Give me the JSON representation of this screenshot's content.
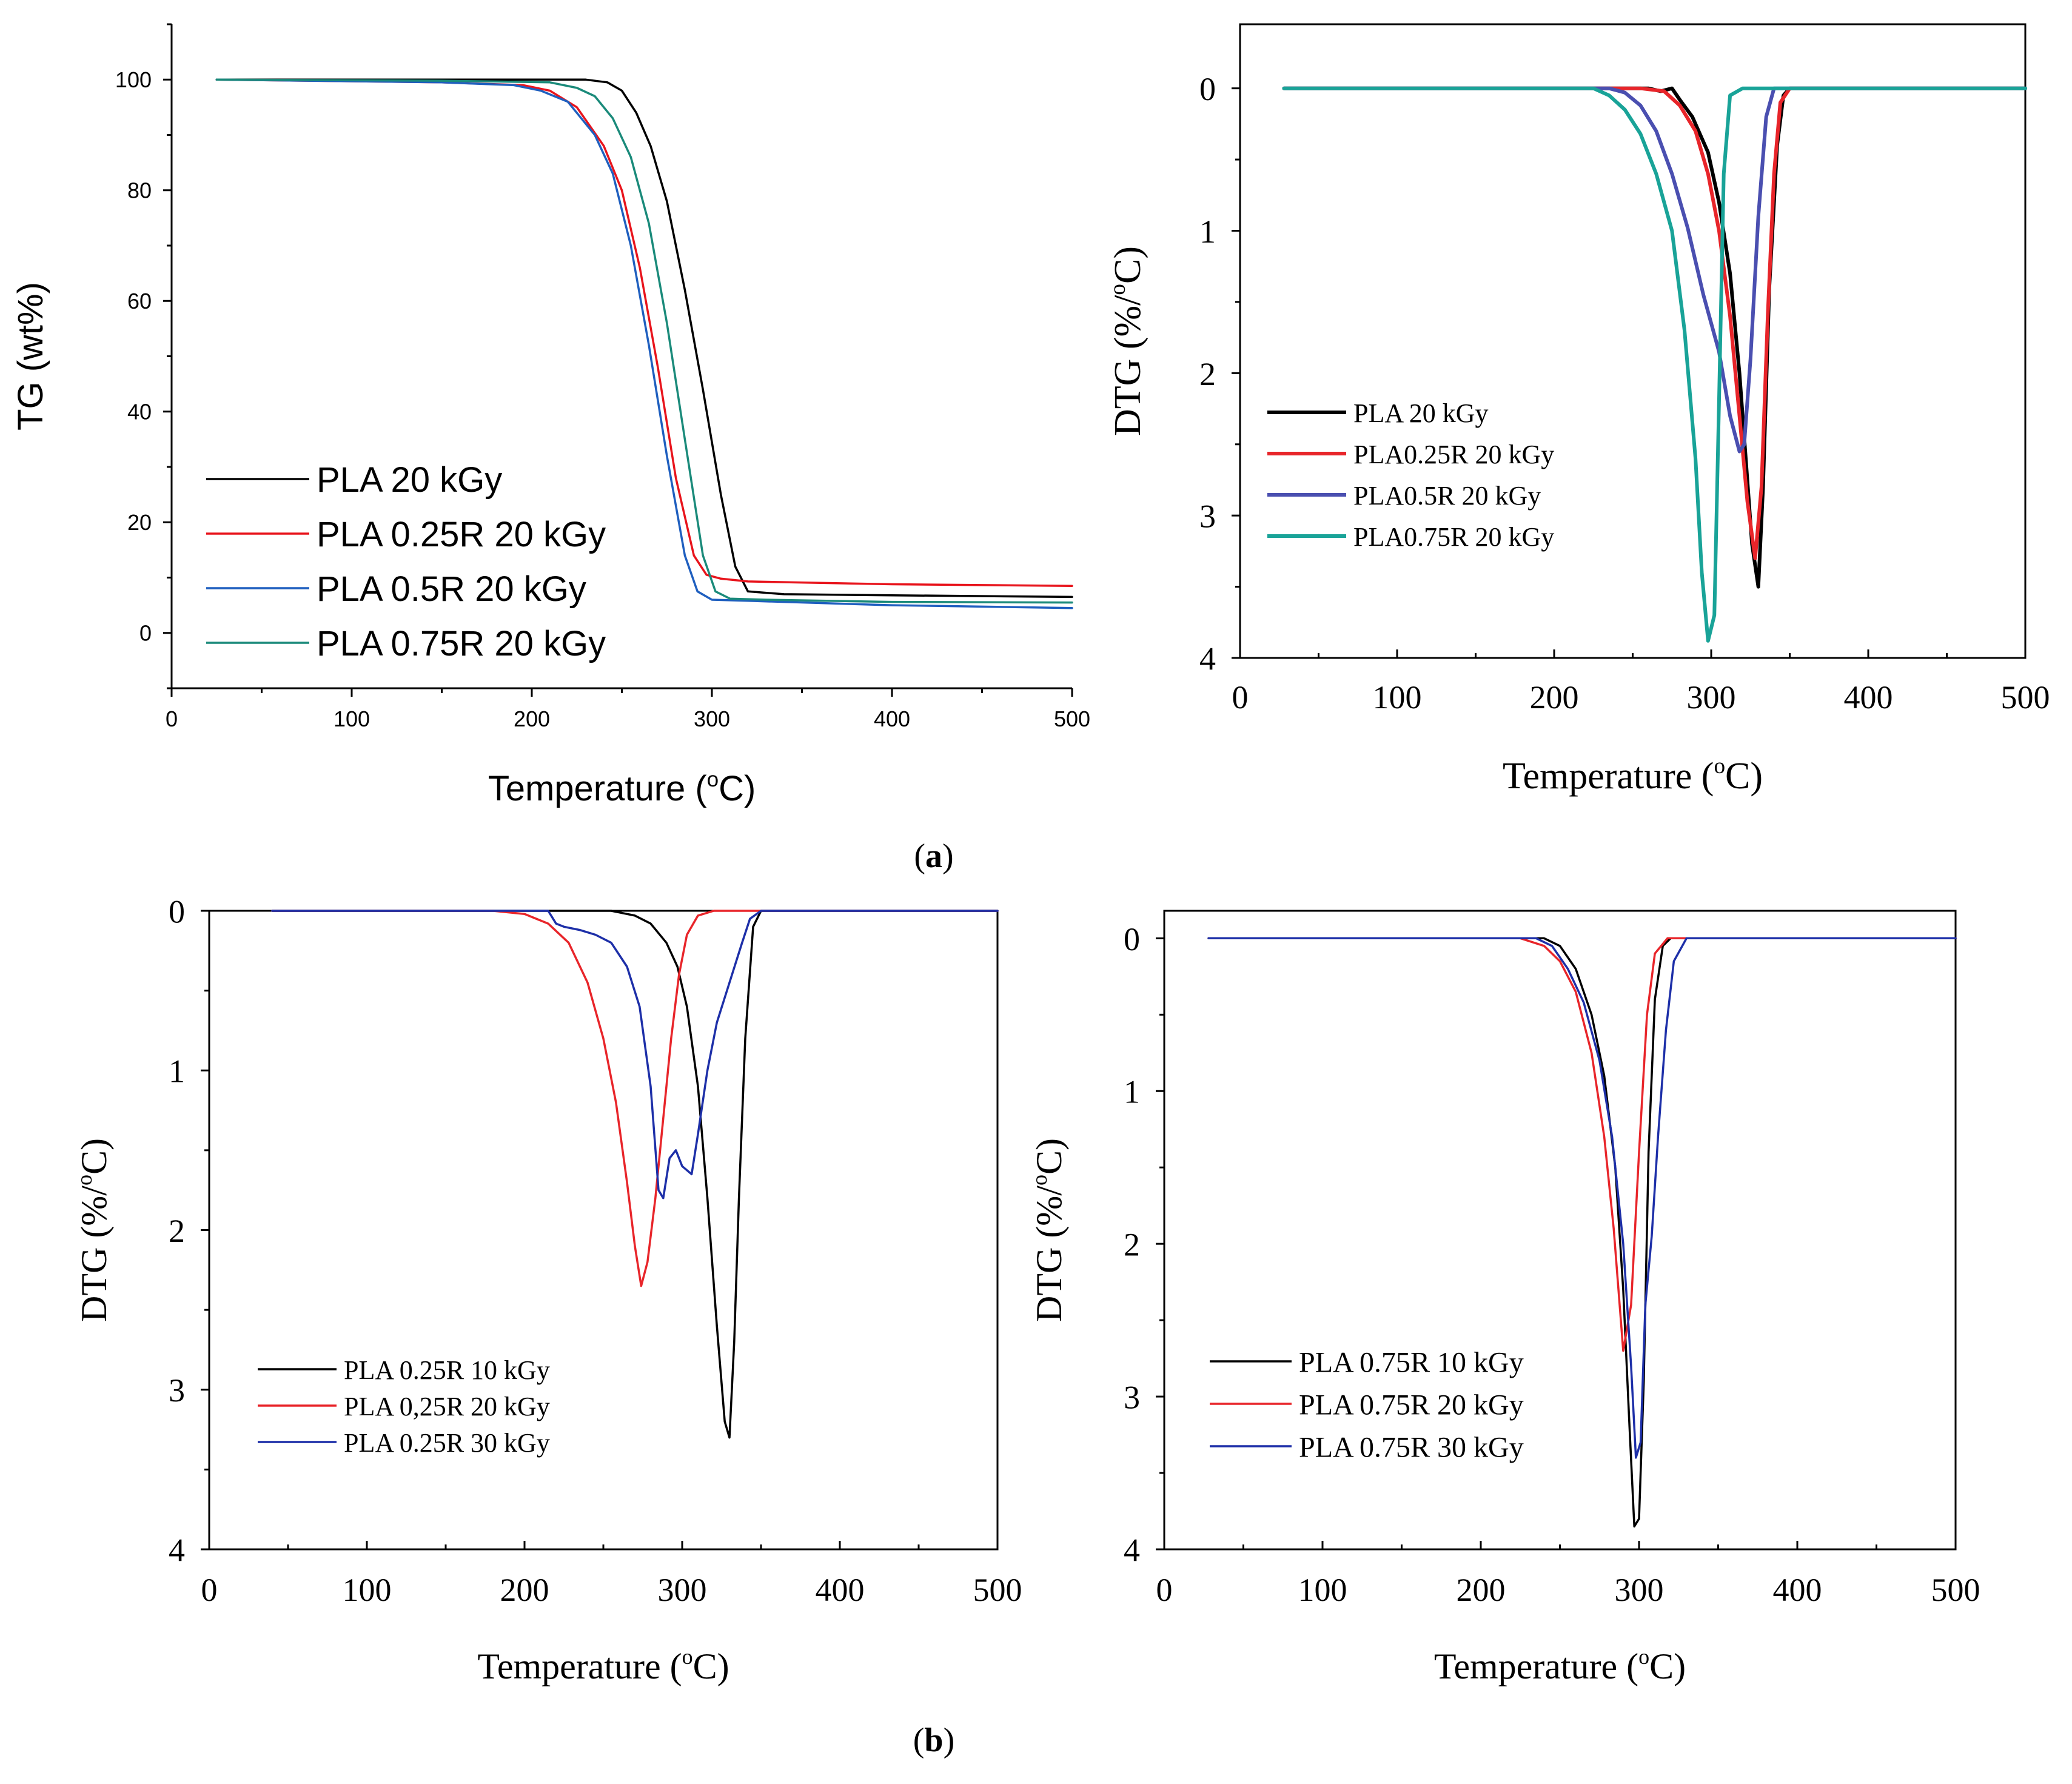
{
  "panel_labels": {
    "a": "a",
    "b": "b"
  },
  "colors": {
    "black": "#000000",
    "red": "#e8141c",
    "blue_tg": "#1f5fbf",
    "teal_tg": "#1a8a7a",
    "red_dtg": "#e8252a",
    "blue_dtg": "#4a4fb0",
    "teal_dtg": "#19a398",
    "navy": "#1d2fa8"
  },
  "chart_data": [
    {
      "id": "tg",
      "type": "line",
      "title": "",
      "xlabel": "Temperature",
      "xunit_sup": "o",
      "xunit": "C",
      "ylabel": "TG (wt%)",
      "xlim": [
        0,
        500
      ],
      "ylim": [
        -10,
        110
      ],
      "xticks": [
        "0",
        "100",
        "200",
        "300",
        "400",
        "500"
      ],
      "yticks": [
        "0",
        "20",
        "40",
        "60",
        "80",
        "100"
      ],
      "legend_position": "bottom-left",
      "series": [
        {
          "name": "PLA 20 kGy",
          "color": "#000000",
          "x": [
            25,
            150,
            230,
            242,
            250,
            258,
            266,
            275,
            285,
            295,
            305,
            313,
            320,
            340,
            400,
            500
          ],
          "y": [
            100,
            100,
            100,
            99.5,
            98,
            94,
            88,
            78,
            62,
            44,
            25,
            12,
            7.5,
            7.0,
            6.8,
            6.5
          ]
        },
        {
          "name": "PLA 0.25R 20 kGy",
          "color": "#e8141c",
          "x": [
            25,
            150,
            195,
            210,
            225,
            240,
            250,
            260,
            270,
            280,
            290,
            297,
            305,
            320,
            400,
            500
          ],
          "y": [
            100,
            99.5,
            99,
            98,
            95,
            88,
            80,
            66,
            48,
            28,
            14,
            10.5,
            9.8,
            9.3,
            8.8,
            8.5
          ]
        },
        {
          "name": "PLA 0.5R 20 kGy",
          "color": "#1f5fbf",
          "x": [
            25,
            150,
            190,
            205,
            220,
            235,
            245,
            255,
            265,
            275,
            285,
            292,
            300,
            320,
            400,
            500
          ],
          "y": [
            100,
            99.5,
            99,
            98,
            96,
            90,
            83,
            70,
            52,
            32,
            14,
            7.5,
            6.0,
            5.8,
            5.0,
            4.5
          ]
        },
        {
          "name": "PLA 0.75R 20 kGy",
          "color": "#1a8a7a",
          "x": [
            25,
            150,
            210,
            225,
            235,
            245,
            255,
            265,
            275,
            285,
            295,
            302,
            310,
            330,
            400,
            500
          ],
          "y": [
            100,
            99.8,
            99.5,
            98.5,
            97,
            93,
            86,
            74,
            56,
            35,
            14,
            7.5,
            6.2,
            6.0,
            5.6,
            5.5
          ]
        }
      ]
    },
    {
      "id": "dtg_a",
      "type": "line",
      "xlabel": "Temperature",
      "xunit_sup": "o",
      "xunit": "C",
      "ylabel": "DTG (%/",
      "yunit_sup": "o",
      "yunit": "C)",
      "xlim": [
        0,
        500
      ],
      "ylim": [
        -0.45,
        4
      ],
      "y_inverted": true,
      "xticks": [
        "0",
        "100",
        "200",
        "300",
        "400",
        "500"
      ],
      "yticks": [
        "0",
        "1",
        "2",
        "3",
        "4"
      ],
      "legend_position": "bottom-left",
      "series": [
        {
          "name": "PLA 20 kGy",
          "color": "#000000",
          "x": [
            28,
            200,
            260,
            268,
            275,
            280,
            288,
            298,
            305,
            312,
            318,
            322,
            326,
            330,
            333,
            337,
            342,
            346,
            350,
            400,
            500
          ],
          "y": [
            0,
            0,
            0,
            0.02,
            0.0,
            0.08,
            0.2,
            0.45,
            0.8,
            1.3,
            2.0,
            2.6,
            3.2,
            3.5,
            2.8,
            1.4,
            0.4,
            0.05,
            0,
            0,
            0
          ]
        },
        {
          "name": "PLA0.25R 20 kGy",
          "color": "#e8252a",
          "x": [
            28,
            200,
            255,
            270,
            280,
            290,
            298,
            305,
            312,
            318,
            323,
            328,
            332,
            336,
            340,
            344,
            350,
            400,
            500
          ],
          "y": [
            0,
            0,
            0,
            0.02,
            0.12,
            0.3,
            0.6,
            1.0,
            1.6,
            2.3,
            2.9,
            3.3,
            2.8,
            1.6,
            0.6,
            0.1,
            0,
            0,
            0
          ]
        },
        {
          "name": "PLA0.5R 20 kGy",
          "color": "#4a4fb0",
          "x": [
            28,
            200,
            235,
            245,
            255,
            265,
            275,
            285,
            295,
            305,
            312,
            318,
            321,
            325,
            330,
            335,
            340,
            400,
            500
          ],
          "y": [
            0,
            0,
            0,
            0.03,
            0.12,
            0.3,
            0.6,
            0.98,
            1.45,
            1.85,
            2.3,
            2.55,
            2.5,
            1.9,
            0.9,
            0.2,
            0,
            0,
            0
          ]
        },
        {
          "name": "PLA0.75R 20 kGy",
          "color": "#19a398",
          "x": [
            28,
            200,
            225,
            235,
            245,
            255,
            265,
            275,
            283,
            290,
            294,
            298,
            302,
            305,
            308,
            312,
            320,
            400,
            500
          ],
          "y": [
            0,
            0,
            0,
            0.05,
            0.15,
            0.32,
            0.6,
            1.0,
            1.7,
            2.6,
            3.4,
            3.88,
            3.7,
            2.2,
            0.6,
            0.05,
            0,
            0,
            0
          ]
        }
      ]
    },
    {
      "id": "dtg_b1",
      "type": "line",
      "xlabel": "Temperature",
      "xunit_sup": "o",
      "xunit": "C",
      "ylabel": "DTG (%/",
      "yunit_sup": "o",
      "yunit": "C)",
      "xlim": [
        0,
        500
      ],
      "ylim": [
        0,
        4
      ],
      "y_inverted": true,
      "xticks": [
        "0",
        "100",
        "200",
        "300",
        "400",
        "500"
      ],
      "yticks": [
        "0",
        "1",
        "2",
        "3",
        "4"
      ],
      "legend_position": "bottom-left",
      "series": [
        {
          "name": "PLA 0.25R 10 kGy",
          "color": "#000000",
          "x": [
            40,
            200,
            255,
            270,
            280,
            290,
            297,
            303,
            310,
            316,
            322,
            327,
            330,
            333,
            336,
            340,
            345,
            350,
            400,
            500
          ],
          "y": [
            0,
            0,
            0,
            0.03,
            0.08,
            0.2,
            0.35,
            0.6,
            1.1,
            1.8,
            2.6,
            3.2,
            3.3,
            2.7,
            1.8,
            0.8,
            0.1,
            0,
            0,
            0
          ]
        },
        {
          "name": "PLA 0,25R 20 kGy",
          "color": "#e8252a",
          "x": [
            40,
            180,
            200,
            215,
            228,
            240,
            250,
            258,
            265,
            270,
            274,
            278,
            283,
            288,
            293,
            298,
            303,
            310,
            320,
            400,
            500
          ],
          "y": [
            0,
            0,
            0.02,
            0.08,
            0.2,
            0.45,
            0.8,
            1.2,
            1.7,
            2.1,
            2.35,
            2.2,
            1.8,
            1.3,
            0.8,
            0.4,
            0.15,
            0.03,
            0,
            0,
            0
          ]
        },
        {
          "name": "PLA 0.25R 30 kGy",
          "color": "#1d2fa8",
          "x": [
            40,
            200,
            215,
            220,
            225,
            235,
            245,
            255,
            265,
            273,
            280,
            285,
            288,
            292,
            296,
            300,
            306,
            310,
            316,
            322,
            330,
            338,
            343,
            350,
            400,
            500
          ],
          "y": [
            0,
            0,
            0,
            0.08,
            0.1,
            0.12,
            0.15,
            0.2,
            0.35,
            0.6,
            1.1,
            1.75,
            1.8,
            1.55,
            1.5,
            1.6,
            1.65,
            1.4,
            1.0,
            0.7,
            0.45,
            0.2,
            0.05,
            0,
            0,
            0
          ]
        }
      ]
    },
    {
      "id": "dtg_b2",
      "type": "line",
      "xlabel": "Temperature",
      "xunit_sup": "o",
      "xunit": "C",
      "ylabel": "DTG (%/",
      "yunit_sup": "o",
      "yunit": "C)",
      "xlim": [
        0,
        500
      ],
      "ylim": [
        -0.18,
        4
      ],
      "y_inverted": true,
      "xticks": [
        "0",
        "100",
        "200",
        "300",
        "400",
        "500"
      ],
      "yticks": [
        "0",
        "1",
        "2",
        "3",
        "4"
      ],
      "legend_position": "bottom-left",
      "series": [
        {
          "name": "PLA 0.75R 10 kGy",
          "color": "#000000",
          "x": [
            28,
            200,
            240,
            250,
            260,
            270,
            278,
            285,
            290,
            294,
            297,
            300,
            303,
            306,
            310,
            315,
            320,
            400,
            500
          ],
          "y": [
            0,
            0,
            0,
            0.05,
            0.2,
            0.5,
            0.9,
            1.5,
            2.3,
            3.2,
            3.85,
            3.8,
            2.9,
            1.4,
            0.4,
            0.05,
            0,
            0,
            0
          ]
        },
        {
          "name": "PLA 0.75R 20 kGy",
          "color": "#e8252a",
          "x": [
            28,
            200,
            225,
            240,
            250,
            260,
            270,
            278,
            284,
            290,
            295,
            300,
            305,
            310,
            318,
            400,
            500
          ],
          "y": [
            0,
            0,
            0,
            0.05,
            0.15,
            0.35,
            0.75,
            1.3,
            1.9,
            2.7,
            2.4,
            1.4,
            0.5,
            0.1,
            0,
            0,
            0
          ]
        },
        {
          "name": "PLA 0.75R 30 kGy",
          "color": "#1d2fa8",
          "x": [
            28,
            200,
            235,
            245,
            255,
            265,
            275,
            283,
            290,
            295,
            298,
            301,
            304,
            308,
            312,
            317,
            322,
            330,
            400,
            500
          ],
          "y": [
            0,
            0,
            0,
            0.05,
            0.2,
            0.42,
            0.8,
            1.3,
            2.0,
            2.8,
            3.4,
            3.3,
            2.4,
            1.95,
            1.3,
            0.6,
            0.15,
            0,
            0,
            0
          ]
        }
      ]
    }
  ]
}
